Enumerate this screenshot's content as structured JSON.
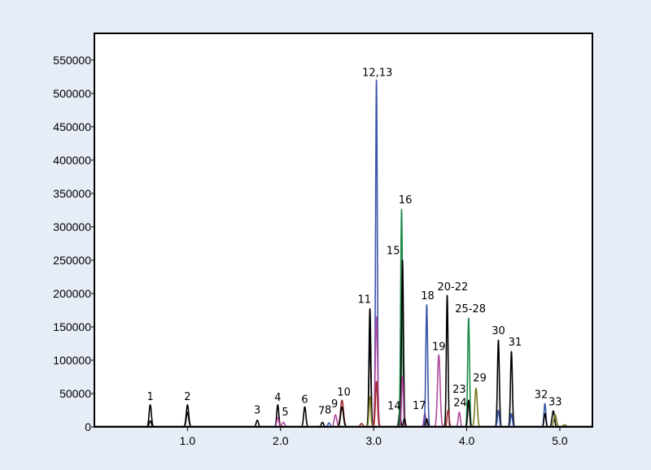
{
  "chart_data": {
    "type": "line",
    "title": "",
    "xlabel": "",
    "ylabel": "",
    "xlim": [
      0,
      5.35
    ],
    "ylim": [
      0,
      590000
    ],
    "x_ticks": [
      1.0,
      2.0,
      3.0,
      4.0,
      5.0
    ],
    "x_tick_labels": [
      "1.0",
      "2.0",
      "3.0",
      "4.0",
      "5.0"
    ],
    "y_ticks": [
      0,
      50000,
      100000,
      150000,
      200000,
      250000,
      300000,
      350000,
      400000,
      450000,
      500000,
      550000
    ],
    "y_tick_labels": [
      "0",
      "50000",
      "100000",
      "150000",
      "200000",
      "250000",
      "300000",
      "350000",
      "400000",
      "450000",
      "500000",
      "550000"
    ],
    "grid": false,
    "colors": {
      "background": "#e6edf7",
      "plot_area": "#ffffff",
      "black": "#000000",
      "blue": "#3d55a8",
      "green": "#1e8a4a",
      "magenta": "#b04a9e",
      "olive": "#7a7a22",
      "red": "#a0282a"
    },
    "peaks": [
      {
        "x": 0.6,
        "y": 33000,
        "width": 0.012,
        "color": "black"
      },
      {
        "x": 0.6,
        "y": 9000,
        "width": 0.012,
        "color": "black"
      },
      {
        "x": 1.0,
        "y": 33000,
        "width": 0.013,
        "color": "black"
      },
      {
        "x": 1.0,
        "y": 22000,
        "width": 0.013,
        "color": "black"
      },
      {
        "x": 1.75,
        "y": 10000,
        "width": 0.012,
        "color": "black"
      },
      {
        "x": 1.97,
        "y": 33000,
        "width": 0.011,
        "color": "black"
      },
      {
        "x": 1.97,
        "y": 14000,
        "width": 0.011,
        "color": "magenta"
      },
      {
        "x": 2.03,
        "y": 7000,
        "width": 0.014,
        "color": "magenta"
      },
      {
        "x": 2.26,
        "y": 30000,
        "width": 0.012,
        "color": "black"
      },
      {
        "x": 2.45,
        "y": 7000,
        "width": 0.012,
        "color": "black"
      },
      {
        "x": 2.52,
        "y": 6000,
        "width": 0.012,
        "color": "blue"
      },
      {
        "x": 2.59,
        "y": 18000,
        "width": 0.014,
        "color": "magenta"
      },
      {
        "x": 2.66,
        "y": 40000,
        "width": 0.016,
        "color": "red"
      },
      {
        "x": 2.66,
        "y": 30000,
        "width": 0.015,
        "color": "black"
      },
      {
        "x": 2.87,
        "y": 5000,
        "width": 0.015,
        "color": "red"
      },
      {
        "x": 2.96,
        "y": 177000,
        "width": 0.01,
        "color": "black"
      },
      {
        "x": 2.96,
        "y": 135000,
        "width": 0.01,
        "color": "black"
      },
      {
        "x": 2.96,
        "y": 45000,
        "width": 0.01,
        "color": "olive"
      },
      {
        "x": 3.03,
        "y": 520000,
        "width": 0.009,
        "color": "blue"
      },
      {
        "x": 3.03,
        "y": 165000,
        "width": 0.012,
        "color": "magenta"
      },
      {
        "x": 3.03,
        "y": 68000,
        "width": 0.011,
        "color": "red"
      },
      {
        "x": 3.28,
        "y": 22000,
        "width": 0.01,
        "color": "black"
      },
      {
        "x": 3.3,
        "y": 326000,
        "width": 0.01,
        "color": "green"
      },
      {
        "x": 3.31,
        "y": 250000,
        "width": 0.01,
        "color": "black"
      },
      {
        "x": 3.31,
        "y": 75000,
        "width": 0.01,
        "color": "magenta"
      },
      {
        "x": 3.33,
        "y": 12000,
        "width": 0.01,
        "color": "black"
      },
      {
        "x": 3.55,
        "y": 20000,
        "width": 0.011,
        "color": "magenta"
      },
      {
        "x": 3.57,
        "y": 183000,
        "width": 0.01,
        "color": "blue"
      },
      {
        "x": 3.57,
        "y": 12000,
        "width": 0.01,
        "color": "black"
      },
      {
        "x": 3.7,
        "y": 108000,
        "width": 0.014,
        "color": "magenta"
      },
      {
        "x": 3.79,
        "y": 197000,
        "width": 0.009,
        "color": "black"
      },
      {
        "x": 3.8,
        "y": 25000,
        "width": 0.011,
        "color": "red"
      },
      {
        "x": 3.92,
        "y": 22000,
        "width": 0.011,
        "color": "magenta"
      },
      {
        "x": 4.02,
        "y": 163000,
        "width": 0.01,
        "color": "green"
      },
      {
        "x": 4.02,
        "y": 40000,
        "width": 0.01,
        "color": "black"
      },
      {
        "x": 4.1,
        "y": 58000,
        "width": 0.013,
        "color": "olive"
      },
      {
        "x": 4.34,
        "y": 130000,
        "width": 0.01,
        "color": "black"
      },
      {
        "x": 4.34,
        "y": 25000,
        "width": 0.01,
        "color": "blue"
      },
      {
        "x": 4.48,
        "y": 113000,
        "width": 0.01,
        "color": "black"
      },
      {
        "x": 4.48,
        "y": 20000,
        "width": 0.01,
        "color": "blue"
      },
      {
        "x": 4.84,
        "y": 35000,
        "width": 0.01,
        "color": "blue"
      },
      {
        "x": 4.84,
        "y": 20000,
        "width": 0.01,
        "color": "black"
      },
      {
        "x": 4.93,
        "y": 24000,
        "width": 0.013,
        "color": "black"
      },
      {
        "x": 4.95,
        "y": 18000,
        "width": 0.014,
        "color": "olive"
      },
      {
        "x": 5.05,
        "y": 3000,
        "width": 0.02,
        "color": "olive"
      }
    ],
    "annotations": [
      {
        "text": "1",
        "x": 0.6,
        "y": 34000
      },
      {
        "text": "2",
        "x": 1.0,
        "y": 34000
      },
      {
        "text": "3",
        "x": 1.75,
        "y": 14000
      },
      {
        "text": "4",
        "x": 1.97,
        "y": 33000
      },
      {
        "text": "5",
        "x": 2.05,
        "y": 11000
      },
      {
        "text": "6",
        "x": 2.26,
        "y": 30000
      },
      {
        "text": "7",
        "x": 2.44,
        "y": 13000
      },
      {
        "text": "8",
        "x": 2.51,
        "y": 14000
      },
      {
        "text": "9",
        "x": 2.58,
        "y": 23000
      },
      {
        "text": "10",
        "x": 2.68,
        "y": 41000
      },
      {
        "text": "11",
        "x": 2.9,
        "y": 180000
      },
      {
        "text": "12,13",
        "x": 3.04,
        "y": 520000
      },
      {
        "text": "14",
        "x": 3.22,
        "y": 20000
      },
      {
        "text": "15",
        "x": 3.21,
        "y": 253000
      },
      {
        "text": "16",
        "x": 3.34,
        "y": 329000
      },
      {
        "text": "17",
        "x": 3.49,
        "y": 21000
      },
      {
        "text": "18",
        "x": 3.58,
        "y": 185000
      },
      {
        "text": "19",
        "x": 3.7,
        "y": 109000
      },
      {
        "text": "20-22",
        "x": 3.85,
        "y": 199000
      },
      {
        "text": "23",
        "x": 3.92,
        "y": 45000
      },
      {
        "text": "24",
        "x": 3.93,
        "y": 25000
      },
      {
        "text": "25-28",
        "x": 4.04,
        "y": 166000
      },
      {
        "text": "29",
        "x": 4.14,
        "y": 62000
      },
      {
        "text": "30",
        "x": 4.34,
        "y": 133000
      },
      {
        "text": "31",
        "x": 4.52,
        "y": 116000
      },
      {
        "text": "32",
        "x": 4.8,
        "y": 37000
      },
      {
        "text": "33",
        "x": 4.95,
        "y": 26000
      }
    ]
  }
}
